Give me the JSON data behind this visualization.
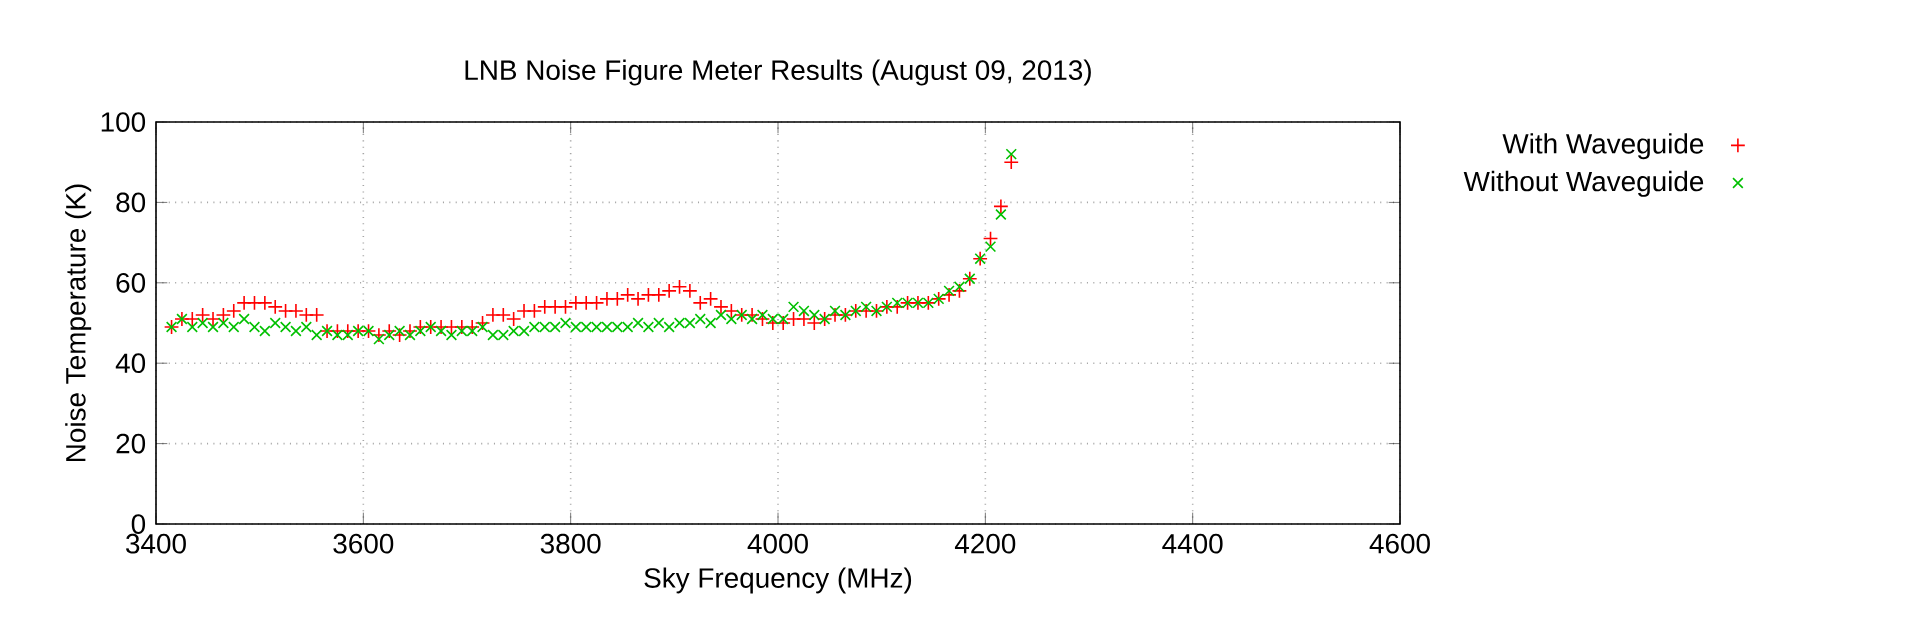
{
  "chart_data": {
    "type": "scatter",
    "title": "LNB Noise Figure Meter Results (August 09, 2013)",
    "xlabel": "Sky Frequency (MHz)",
    "ylabel": "Noise Temperature (K)",
    "x": [
      3415,
      3425,
      3435,
      3445,
      3455,
      3465,
      3475,
      3485,
      3495,
      3505,
      3515,
      3525,
      3535,
      3545,
      3555,
      3565,
      3575,
      3585,
      3595,
      3605,
      3615,
      3625,
      3635,
      3645,
      3655,
      3665,
      3675,
      3685,
      3695,
      3705,
      3715,
      3725,
      3735,
      3745,
      3755,
      3765,
      3775,
      3785,
      3795,
      3805,
      3815,
      3825,
      3835,
      3845,
      3855,
      3865,
      3875,
      3885,
      3895,
      3905,
      3915,
      3925,
      3935,
      3945,
      3955,
      3965,
      3975,
      3985,
      3995,
      4005,
      4015,
      4025,
      4035,
      4045,
      4055,
      4065,
      4075,
      4085,
      4095,
      4105,
      4115,
      4125,
      4135,
      4145,
      4155,
      4165,
      4175,
      4185,
      4195,
      4205,
      4215,
      4225
    ],
    "series": [
      {
        "name": "With Waveguide",
        "color": "#ff0000",
        "marker": "plus",
        "values": [
          49,
          51,
          51,
          52,
          51,
          52,
          53,
          55,
          55,
          55,
          54,
          53,
          53,
          52,
          52,
          48,
          48,
          48,
          48,
          48,
          47,
          48,
          47,
          48,
          49,
          49,
          49,
          49,
          49,
          49,
          50,
          52,
          52,
          51,
          53,
          53,
          54,
          54,
          54,
          55,
          55,
          55,
          56,
          56,
          57,
          56,
          57,
          57,
          58,
          59,
          58,
          55,
          56,
          54,
          53,
          52,
          52,
          51,
          50,
          50,
          51,
          51,
          50,
          51,
          52,
          52,
          53,
          53,
          53,
          54,
          54,
          55,
          55,
          55,
          56,
          57,
          58,
          61,
          66,
          71,
          79,
          90
        ]
      },
      {
        "name": "Without Waveguide",
        "color": "#00c000",
        "marker": "cross",
        "values": [
          49,
          51,
          49,
          50,
          49,
          50,
          49,
          51,
          49,
          48,
          50,
          49,
          48,
          49,
          47,
          48,
          47,
          47,
          48,
          48,
          46,
          47,
          48,
          47,
          48,
          49,
          48,
          47,
          48,
          48,
          49,
          47,
          47,
          48,
          48,
          49,
          49,
          49,
          50,
          49,
          49,
          49,
          49,
          49,
          49,
          50,
          49,
          50,
          49,
          50,
          50,
          51,
          50,
          52,
          51,
          52,
          51,
          52,
          51,
          51,
          54,
          53,
          52,
          51,
          53,
          52,
          53,
          54,
          53,
          54,
          55,
          55,
          55,
          55,
          56,
          58,
          59,
          61,
          66,
          69,
          77,
          92
        ]
      }
    ],
    "xlim": [
      3400,
      4600
    ],
    "xticks": [
      3400,
      3600,
      3800,
      4000,
      4200,
      4400,
      4600
    ],
    "ylim": [
      0,
      100
    ],
    "yticks": [
      0,
      20,
      40,
      60,
      80,
      100
    ],
    "grid": true,
    "legend": "top right"
  }
}
